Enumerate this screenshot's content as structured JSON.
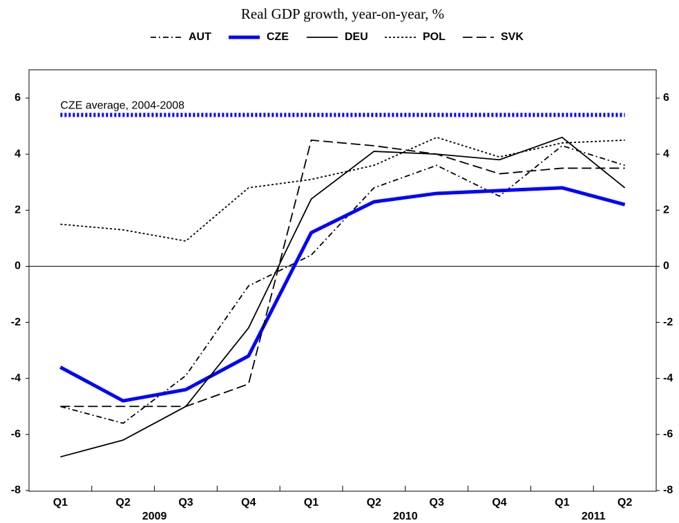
{
  "chart_data": {
    "type": "line",
    "title": "Real GDP growth, year-on-year, %",
    "categories": [
      "Q1",
      "Q2",
      "Q3",
      "Q4",
      "Q1",
      "Q2",
      "Q3",
      "Q4",
      "Q1",
      "Q2"
    ],
    "years": [
      "2009",
      "2010",
      "2011"
    ],
    "series": [
      {
        "name": "AUT",
        "color": "#000000",
        "width": 1.8,
        "dash": "8 4 2 4",
        "values": [
          -5.0,
          -5.6,
          -3.9,
          -0.7,
          0.4,
          2.8,
          3.6,
          2.5,
          4.3,
          3.6
        ]
      },
      {
        "name": "CZE",
        "color": "#0000ff",
        "width": 5,
        "dash": "none",
        "values": [
          -3.6,
          -4.8,
          -4.4,
          -3.2,
          1.2,
          2.3,
          2.6,
          2.7,
          2.8,
          2.2
        ]
      },
      {
        "name": "DEU",
        "color": "#000000",
        "width": 1.8,
        "dash": "none",
        "values": [
          -6.8,
          -6.2,
          -5.0,
          -2.2,
          2.4,
          4.1,
          4.0,
          3.8,
          4.6,
          2.8
        ]
      },
      {
        "name": "POL",
        "color": "#000000",
        "width": 1.8,
        "dash": "3 3",
        "values": [
          1.5,
          1.3,
          0.9,
          2.8,
          3.1,
          3.6,
          4.6,
          3.9,
          4.4,
          4.5
        ]
      },
      {
        "name": "SVK",
        "color": "#000000",
        "width": 1.8,
        "dash": "14 6",
        "values": [
          -5.0,
          -5.0,
          -5.0,
          -4.2,
          4.5,
          4.3,
          4.0,
          3.3,
          3.5,
          3.5
        ]
      }
    ],
    "reference": {
      "label": "CZE average, 2004-2008",
      "value": 5.4,
      "color": "#0000ff"
    },
    "ylim": [
      -8,
      6
    ],
    "yticks": [
      -8,
      -6,
      -4,
      -2,
      0,
      2,
      4,
      6
    ]
  }
}
